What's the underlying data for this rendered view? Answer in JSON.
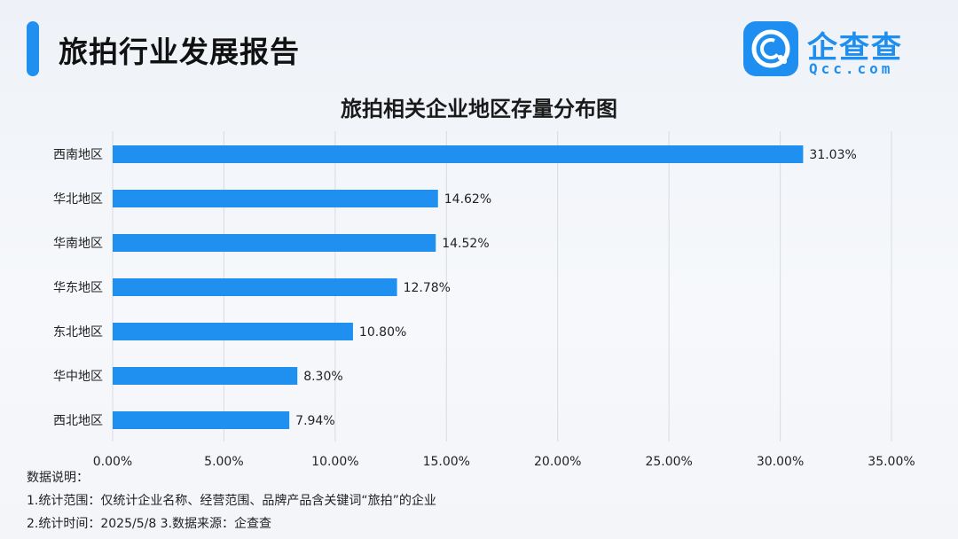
{
  "header": {
    "title": "旅拍行业发展报告",
    "logo_cn": "企查查",
    "logo_en": "Qcc.com"
  },
  "colors": {
    "bar": "#1f8ff0",
    "accent": "#1f8ff0",
    "grid": "#d8dbe0"
  },
  "chart_data": {
    "type": "bar",
    "orientation": "horizontal",
    "title": "旅拍相关企业地区存量分布图",
    "categories": [
      "西南地区",
      "华北地区",
      "华南地区",
      "华东地区",
      "东北地区",
      "华中地区",
      "西北地区"
    ],
    "values": [
      31.03,
      14.62,
      14.52,
      12.78,
      10.8,
      8.3,
      7.94
    ],
    "value_labels": [
      "31.03%",
      "14.62%",
      "14.52%",
      "12.78%",
      "10.80%",
      "8.30%",
      "7.94%"
    ],
    "xlim": [
      0,
      35
    ],
    "xticks": [
      0,
      5,
      10,
      15,
      20,
      25,
      30,
      35
    ],
    "xtick_labels": [
      "0.00%",
      "5.00%",
      "10.00%",
      "15.00%",
      "20.00%",
      "25.00%",
      "30.00%",
      "35.00%"
    ],
    "grid": true,
    "xlabel": "",
    "ylabel": ""
  },
  "notes": {
    "heading": "数据说明：",
    "line1": "1.统计范围：仅统计企业名称、经营范围、品牌产品含关键词“旅拍”的企业",
    "line2": " 2.统计时间：2025/5/8   3.数据来源：企查查"
  }
}
